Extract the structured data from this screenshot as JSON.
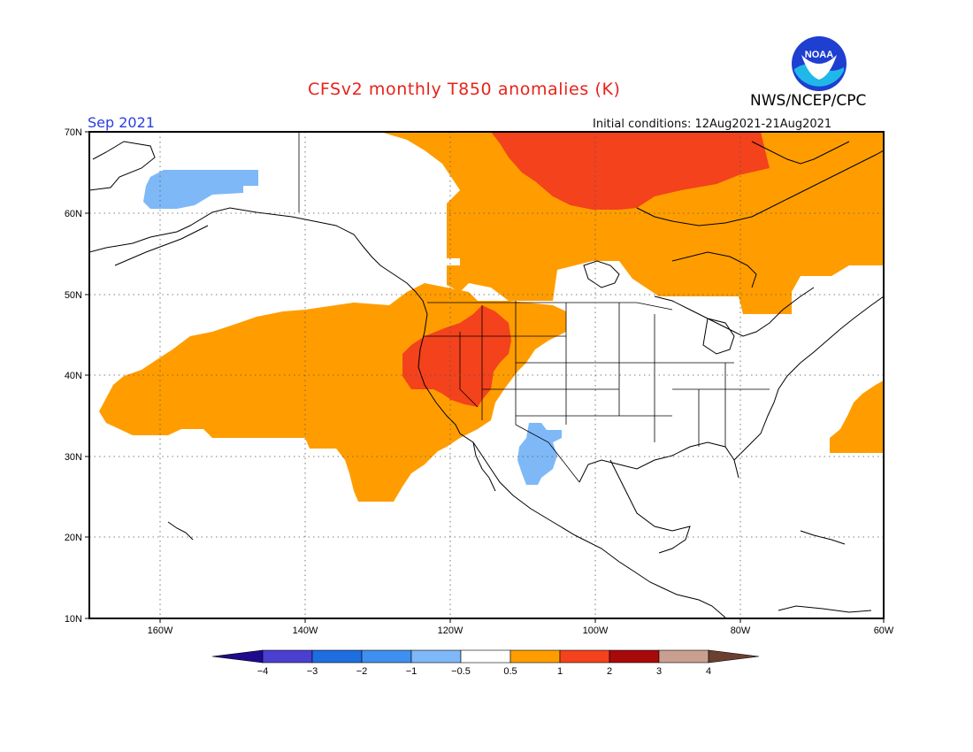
{
  "header": {
    "title": "CFSv2 monthly T850 anomalies (K)",
    "month": "Sep 2021",
    "initial_conditions": "Initial conditions: 12Aug2021-21Aug2021",
    "agency": "NWS/NCEP/CPC",
    "logo_text": "NOAA"
  },
  "axes": {
    "lat_labels": [
      "70N",
      "60N",
      "50N",
      "40N",
      "30N",
      "20N",
      "10N"
    ],
    "lon_labels": [
      "160W",
      "140W",
      "120W",
      "100W",
      "80W",
      "60W"
    ]
  },
  "legend": {
    "labels": [
      "−4",
      "−3",
      "−2",
      "−1",
      "−0.5",
      "0.5",
      "1",
      "2",
      "3",
      "4"
    ],
    "colors": [
      "#1e0a8c",
      "#4a3fd1",
      "#1e6ee0",
      "#3f8ff0",
      "#7eb8f7",
      "#ffffff",
      "#ff9d00",
      "#f3421c",
      "#a8090b",
      "#c9a090",
      "#6b4030"
    ]
  },
  "colors": {
    "orange": "#ff9d00",
    "red": "#f3421c",
    "light_blue": "#7eb8f7"
  }
}
